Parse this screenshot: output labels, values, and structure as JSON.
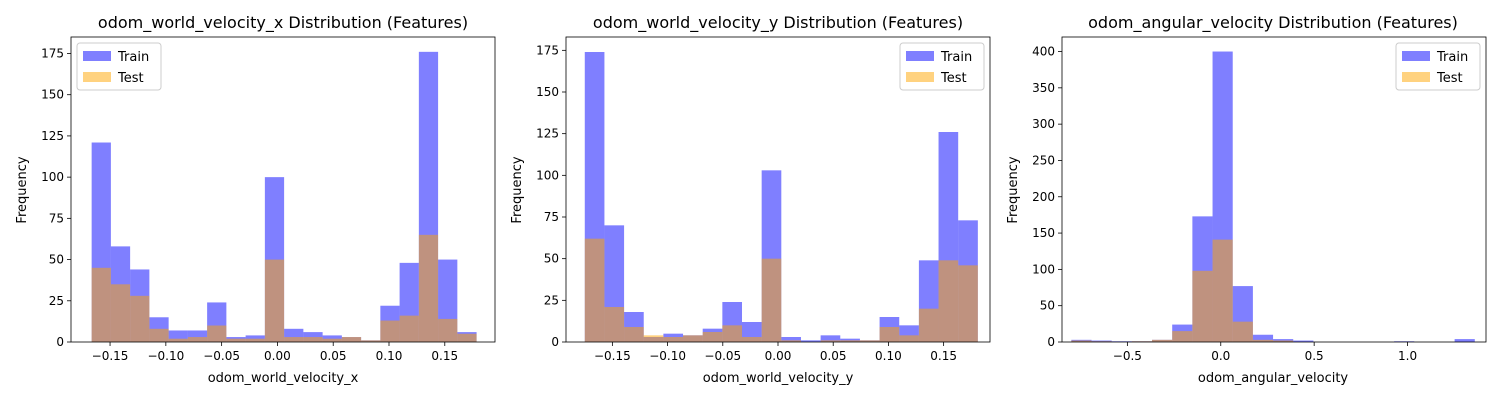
{
  "colors": {
    "train": "#0000ff",
    "test": "#ffa500",
    "train_alpha": 0.5,
    "test_alpha": 0.5
  },
  "chart_data": [
    {
      "type": "histogram",
      "title": "odom_world_velocity_x Distribution (Features)",
      "xlabel": "odom_world_velocity_x",
      "ylabel": "Frequency",
      "xlim": [
        -0.185,
        0.195
      ],
      "ylim": [
        0,
        185
      ],
      "xticks": [
        -0.15,
        -0.1,
        -0.05,
        0.0,
        0.05,
        0.1,
        0.15
      ],
      "xtick_labels": [
        "−0.15",
        "−0.10",
        "−0.05",
        "0.00",
        "0.05",
        "0.10",
        "0.15"
      ],
      "yticks": [
        0,
        25,
        50,
        75,
        100,
        125,
        150,
        175
      ],
      "ytick_labels": [
        "0",
        "25",
        "50",
        "75",
        "100",
        "125",
        "150",
        "175"
      ],
      "legend": {
        "position": "upper left",
        "entries": [
          "Train",
          "Test"
        ]
      },
      "series": [
        {
          "name": "Train",
          "bin_start": -0.1665,
          "bin_width": 0.01725,
          "values": [
            121,
            58,
            44,
            15,
            7,
            7,
            24,
            3,
            4,
            100,
            8,
            6,
            4,
            3,
            1,
            22,
            48,
            176,
            50,
            6
          ]
        },
        {
          "name": "Test",
          "bin_start": -0.1665,
          "bin_width": 0.01725,
          "values": [
            45,
            35,
            28,
            8,
            2,
            3,
            10,
            2,
            2,
            50,
            3,
            3,
            2,
            3,
            1,
            13,
            16,
            65,
            14,
            5
          ]
        }
      ]
    },
    {
      "type": "histogram",
      "title": "odom_world_velocity_y Distribution (Features)",
      "xlabel": "odom_world_velocity_y",
      "ylabel": "Frequency",
      "xlim": [
        -0.192,
        0.192
      ],
      "ylim": [
        0,
        183
      ],
      "xticks": [
        -0.15,
        -0.1,
        -0.05,
        0.0,
        0.05,
        0.1,
        0.15
      ],
      "xtick_labels": [
        "−0.15",
        "−0.10",
        "−0.05",
        "0.00",
        "0.05",
        "0.10",
        "0.15"
      ],
      "yticks": [
        0,
        25,
        50,
        75,
        100,
        125,
        150,
        175
      ],
      "ytick_labels": [
        "0",
        "25",
        "50",
        "75",
        "100",
        "125",
        "150",
        "175"
      ],
      "legend": {
        "position": "upper right",
        "entries": [
          "Train",
          "Test"
        ]
      },
      "series": [
        {
          "name": "Train",
          "bin_start": -0.175,
          "bin_width": 0.0178,
          "values": [
            174,
            70,
            18,
            3,
            5,
            4,
            8,
            24,
            12,
            103,
            3,
            1,
            4,
            2,
            1,
            15,
            10,
            49,
            126,
            73
          ]
        },
        {
          "name": "Test",
          "bin_start": -0.175,
          "bin_width": 0.0178,
          "values": [
            62,
            21,
            9,
            4,
            3,
            4,
            6,
            10,
            3,
            50,
            1,
            0,
            1,
            1,
            1,
            9,
            4,
            20,
            49,
            46
          ]
        }
      ]
    },
    {
      "type": "histogram",
      "title": "odom_angular_velocity Distribution (Features)",
      "xlabel": "odom_angular_velocity",
      "ylabel": "Frequency",
      "xlim": [
        -0.85,
        1.42
      ],
      "ylim": [
        0,
        420
      ],
      "xticks": [
        -0.5,
        0.0,
        0.5,
        1.0
      ],
      "xtick_labels": [
        "−0.5",
        "0.0",
        "0.5",
        "1.0"
      ],
      "yticks": [
        0,
        50,
        100,
        150,
        200,
        250,
        300,
        350,
        400
      ],
      "ytick_labels": [
        "0",
        "50",
        "100",
        "150",
        "200",
        "250",
        "300",
        "350",
        "400"
      ],
      "legend": {
        "position": "upper right",
        "entries": [
          "Train",
          "Test"
        ]
      },
      "series": [
        {
          "name": "Train",
          "bin_start": -0.8,
          "bin_width": 0.108,
          "values": [
            3,
            2,
            1,
            1,
            3,
            24,
            173,
            400,
            77,
            10,
            4,
            2,
            0,
            0,
            0,
            0,
            1,
            0,
            0,
            4
          ]
        },
        {
          "name": "Test",
          "bin_start": -0.8,
          "bin_width": 0.108,
          "values": [
            2,
            1,
            0,
            1,
            3,
            15,
            98,
            141,
            28,
            3,
            2,
            0,
            0,
            0,
            0,
            0,
            0,
            0,
            0,
            0
          ]
        }
      ]
    }
  ]
}
